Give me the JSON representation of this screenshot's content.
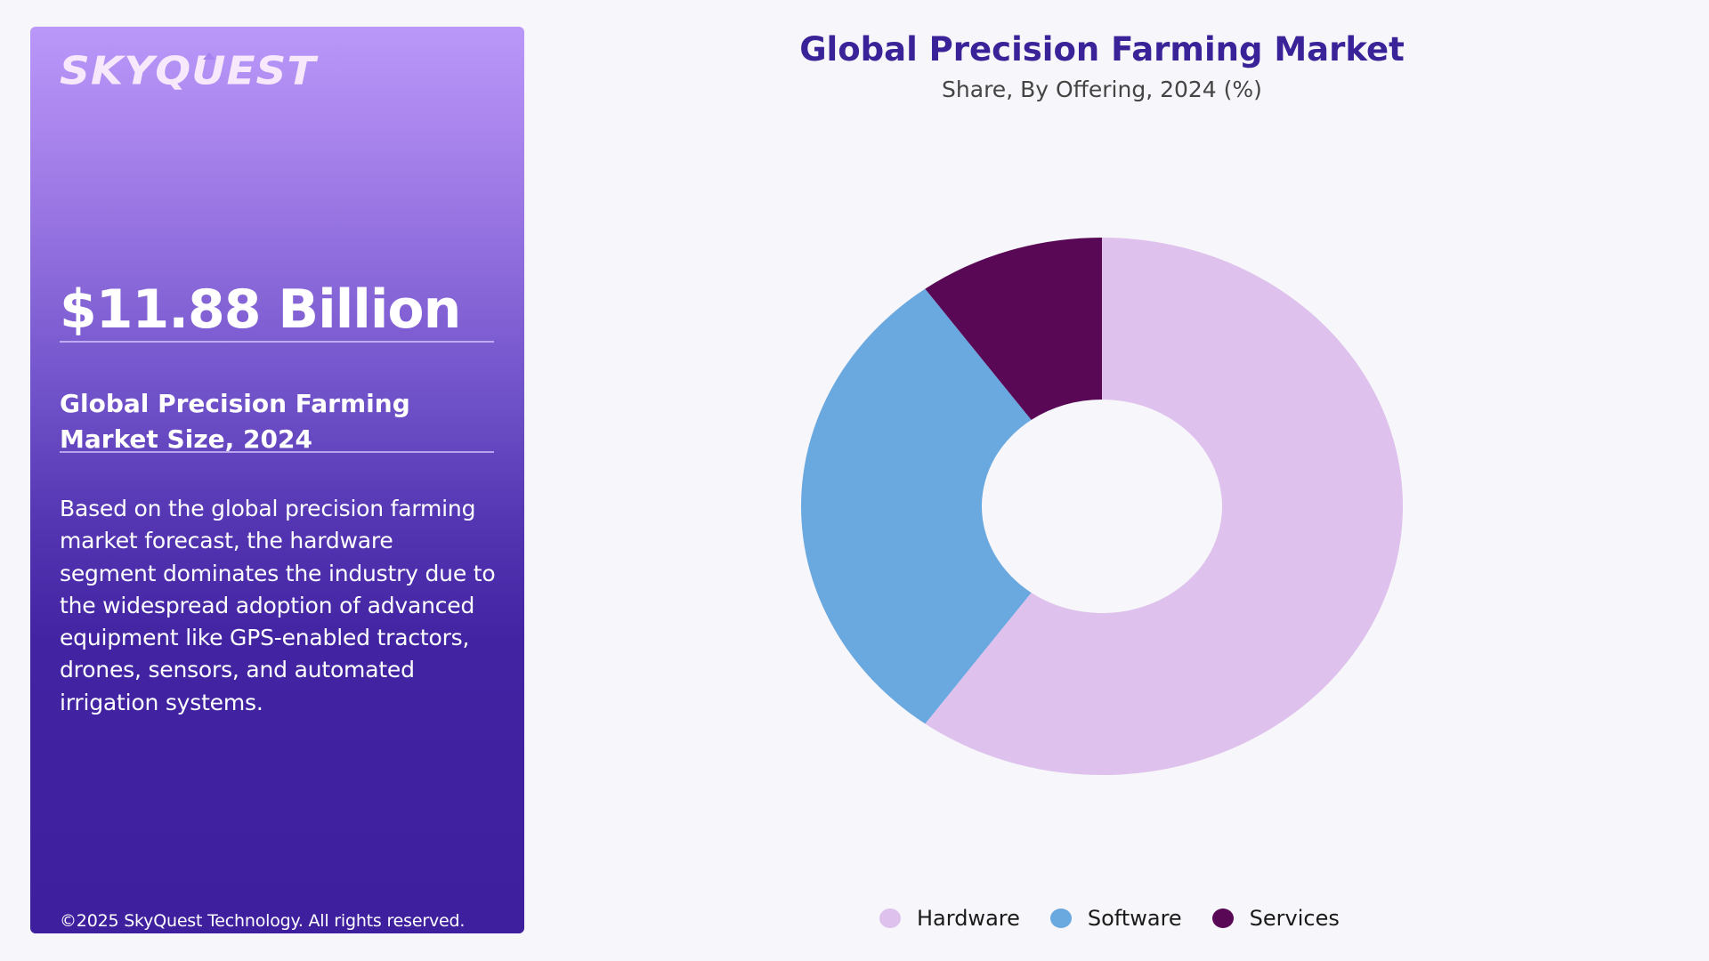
{
  "panel": {
    "logo": {
      "prefix": "SKYQ",
      "arrow_letter": "U",
      "suffix": "EST"
    },
    "market_value": "$11.88 Billion",
    "market_label": "Global Precision Farming Market Size, 2024",
    "description": "Based on the global precision farming market forecast, the hardware segment dominates the industry due to the widespread adoption of advanced equipment like GPS-enabled tractors, drones, sensors, and automated irrigation systems.",
    "copyright": "©2025 SkyQuest Technology. All rights reserved."
  },
  "chart": {
    "title": "Global Precision Farming Market",
    "subtitle": "Share, By Offering, 2024 (%)"
  },
  "legend": [
    {
      "label": "Hardware",
      "color": "#dec1ec"
    },
    {
      "label": "Software",
      "color": "#6aa8e0"
    },
    {
      "label": "Services",
      "color": "#590856"
    }
  ],
  "chart_data": {
    "type": "pie",
    "variant": "donut",
    "title": "Global Precision Farming Market",
    "subtitle": "Share, By Offering, 2024 (%)",
    "categories": [
      "Hardware",
      "Software",
      "Services"
    ],
    "values": [
      60,
      30,
      10
    ],
    "colors": [
      "#dec1ec",
      "#6aa8e0",
      "#590856"
    ],
    "start_angle": "12 o'clock, Hardware clockwise",
    "legend_position": "bottom",
    "data_labels": false
  }
}
